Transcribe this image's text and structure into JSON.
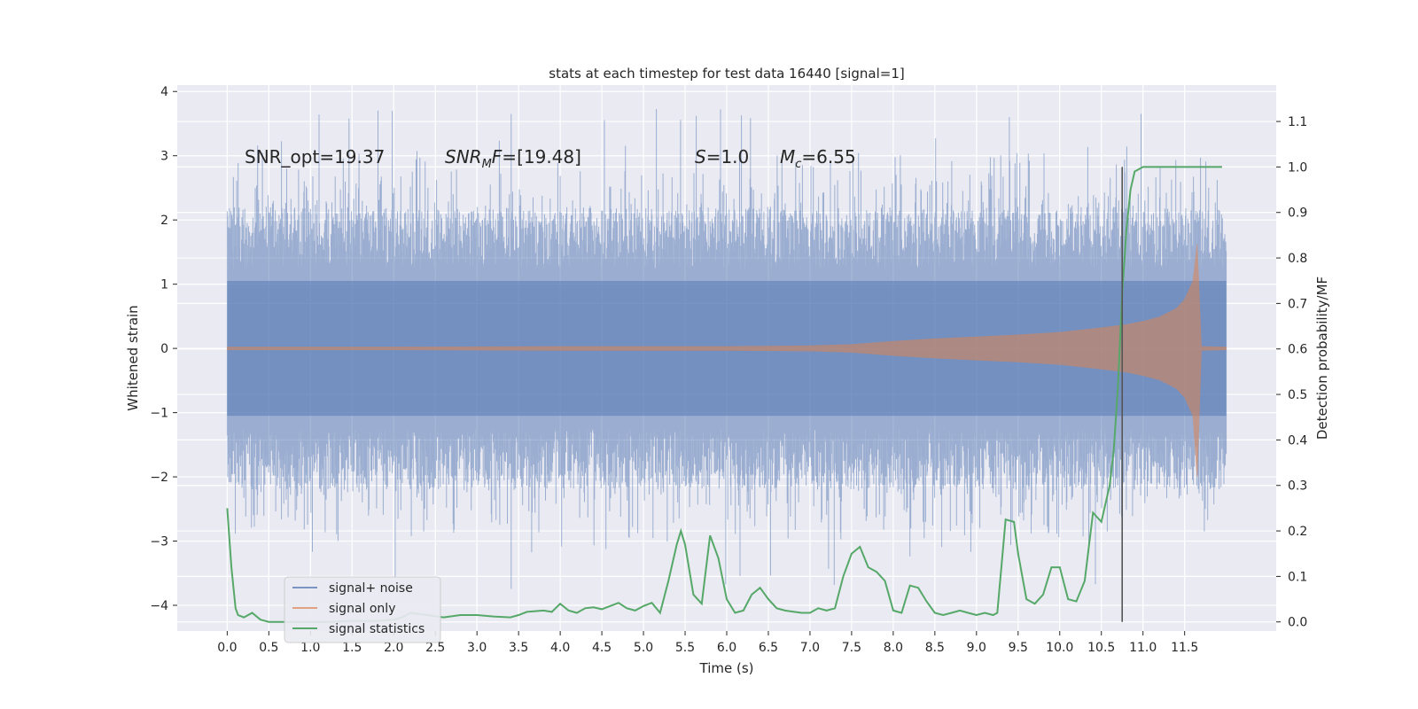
{
  "chart_data": {
    "type": "line",
    "title": "stats at each timestep for test data 16440 [signal=1]",
    "xlabel": "Time (s)",
    "ylabel": "Whitened strain",
    "y2label": "Detection probability/MF",
    "xlim": [
      -0.6,
      12.6
    ],
    "ylim": [
      -4.4,
      4.1
    ],
    "y2lim": [
      -0.02,
      1.18
    ],
    "x_ticks": [
      0.0,
      0.5,
      1.0,
      1.5,
      2.0,
      2.5,
      3.0,
      3.5,
      4.0,
      4.5,
      5.0,
      5.5,
      6.0,
      6.5,
      7.0,
      7.5,
      8.0,
      8.5,
      9.0,
      9.5,
      10.0,
      10.5,
      11.0,
      11.5
    ],
    "x_tick_labels": [
      "0.0",
      "0.5",
      "1.0",
      "1.5",
      "2.0",
      "2.5",
      "3.0",
      "3.5",
      "4.0",
      "4.5",
      "5.0",
      "5.5",
      "6.0",
      "6.5",
      "7.0",
      "7.5",
      "8.0",
      "8.5",
      "9.0",
      "9.5",
      "10.0",
      "10.5",
      "11.0",
      "11.5"
    ],
    "y_ticks": [
      4,
      3,
      2,
      1,
      0,
      -1,
      -2,
      -3,
      -4
    ],
    "y_tick_labels": [
      "4",
      "3",
      "2",
      "1",
      "0",
      "−1",
      "−2",
      "−3",
      "−4"
    ],
    "y2_ticks": [
      0.0,
      0.1,
      0.2,
      0.3,
      0.4,
      0.5,
      0.6,
      0.7,
      0.8,
      0.9,
      1.0,
      1.1
    ],
    "y2_tick_labels": [
      "0.0",
      "0.1",
      "0.2",
      "0.3",
      "0.4",
      "0.5",
      "0.6",
      "0.7",
      "0.8",
      "0.9",
      "1.0",
      "1.1"
    ],
    "grid": true,
    "legend_position": "lower-left",
    "background_color": "#eaeaf2",
    "annotations": {
      "snr_opt": "SNR_opt=19.37",
      "snr_mf": "[19.48]",
      "s": "=1.0",
      "mc": "=6.55"
    },
    "vline_x": 10.75,
    "noise_envelope": {
      "t_start": 0.0,
      "t_end": 12.0,
      "core_amplitude": 1.05,
      "max_positive": 3.75,
      "min_negative": -4.1,
      "color": "#4c72b0"
    },
    "signal_envelope": {
      "x": [
        0.0,
        2.0,
        4.0,
        6.0,
        7.0,
        7.5,
        8.0,
        8.5,
        9.0,
        9.5,
        10.0,
        10.5,
        10.8,
        11.0,
        11.2,
        11.4,
        11.5,
        11.6,
        11.65,
        11.7,
        12.0
      ],
      "amplitude": [
        0.02,
        0.02,
        0.03,
        0.03,
        0.04,
        0.06,
        0.11,
        0.15,
        0.18,
        0.21,
        0.25,
        0.32,
        0.37,
        0.42,
        0.49,
        0.62,
        0.76,
        1.05,
        1.62,
        0.03,
        0.02
      ],
      "color": "#dd8452"
    },
    "series": [
      {
        "name": "signal statistics",
        "axis": "right",
        "color": "#55a868",
        "x": [
          0.0,
          0.05,
          0.1,
          0.13,
          0.2,
          0.3,
          0.4,
          0.5,
          0.6,
          0.8,
          1.0,
          1.2,
          1.5,
          1.8,
          2.0,
          2.1,
          2.2,
          2.4,
          2.6,
          2.8,
          3.0,
          3.2,
          3.4,
          3.5,
          3.6,
          3.8,
          3.9,
          4.0,
          4.1,
          4.2,
          4.3,
          4.4,
          4.5,
          4.6,
          4.7,
          4.8,
          4.9,
          5.0,
          5.1,
          5.2,
          5.3,
          5.4,
          5.45,
          5.5,
          5.6,
          5.7,
          5.8,
          5.9,
          6.0,
          6.1,
          6.2,
          6.3,
          6.4,
          6.5,
          6.6,
          6.7,
          6.9,
          7.0,
          7.1,
          7.2,
          7.3,
          7.4,
          7.5,
          7.6,
          7.7,
          7.8,
          7.9,
          8.0,
          8.1,
          8.2,
          8.3,
          8.4,
          8.5,
          8.6,
          8.7,
          8.8,
          8.9,
          9.0,
          9.1,
          9.2,
          9.25,
          9.35,
          9.45,
          9.5,
          9.6,
          9.7,
          9.8,
          9.9,
          10.0,
          10.1,
          10.2,
          10.3,
          10.4,
          10.5,
          10.6,
          10.65,
          10.7,
          10.75,
          10.8,
          10.85,
          10.9,
          11.0,
          11.2,
          11.5,
          11.8,
          11.95
        ],
        "values": [
          0.25,
          0.12,
          0.03,
          0.015,
          0.01,
          0.02,
          0.005,
          0.0,
          0.0,
          0.0,
          0.0,
          0.0,
          0.002,
          0.002,
          0.005,
          0.01,
          0.02,
          0.015,
          0.01,
          0.015,
          0.015,
          0.012,
          0.01,
          0.015,
          0.022,
          0.025,
          0.022,
          0.04,
          0.025,
          0.02,
          0.03,
          0.032,
          0.028,
          0.035,
          0.042,
          0.03,
          0.025,
          0.035,
          0.042,
          0.02,
          0.09,
          0.17,
          0.2,
          0.17,
          0.06,
          0.04,
          0.19,
          0.14,
          0.05,
          0.02,
          0.025,
          0.06,
          0.075,
          0.05,
          0.03,
          0.025,
          0.02,
          0.02,
          0.03,
          0.025,
          0.03,
          0.1,
          0.15,
          0.165,
          0.12,
          0.11,
          0.09,
          0.025,
          0.02,
          0.08,
          0.075,
          0.045,
          0.02,
          0.015,
          0.02,
          0.025,
          0.02,
          0.015,
          0.02,
          0.015,
          0.02,
          0.225,
          0.22,
          0.15,
          0.05,
          0.04,
          0.06,
          0.12,
          0.12,
          0.05,
          0.045,
          0.09,
          0.24,
          0.22,
          0.3,
          0.38,
          0.52,
          0.72,
          0.86,
          0.95,
          0.99,
          1.0,
          1.0,
          1.0,
          1.0,
          1.0
        ]
      }
    ],
    "legend": [
      {
        "label": "signal+ noise",
        "color": "#4c72b0"
      },
      {
        "label": "signal only",
        "color": "#dd8452"
      },
      {
        "label": "signal statistics",
        "color": "#55a868"
      }
    ]
  }
}
